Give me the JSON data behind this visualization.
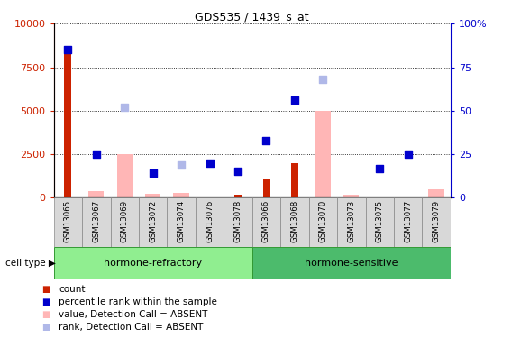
{
  "title": "GDS535 / 1439_s_at",
  "samples": [
    "GSM13065",
    "GSM13067",
    "GSM13069",
    "GSM13072",
    "GSM13074",
    "GSM13076",
    "GSM13078",
    "GSM13066",
    "GSM13068",
    "GSM13070",
    "GSM13073",
    "GSM13075",
    "GSM13077",
    "GSM13079"
  ],
  "ylim_left": [
    0,
    10000
  ],
  "ylim_right": [
    0,
    100
  ],
  "yticks_left": [
    0,
    2500,
    5000,
    7500,
    10000
  ],
  "yticks_right": [
    0,
    25,
    50,
    75,
    100
  ],
  "red_bars": [
    8500,
    0,
    0,
    0,
    0,
    0,
    150,
    1050,
    2000,
    0,
    0,
    0,
    0,
    0
  ],
  "pink_bars": [
    0,
    400,
    2500,
    250,
    300,
    0,
    0,
    0,
    0,
    5000,
    150,
    0,
    0,
    500
  ],
  "blue_squares_pct": [
    85,
    25,
    0,
    14,
    0,
    20,
    15,
    33,
    56,
    0,
    0,
    17,
    25,
    0
  ],
  "lavender_squares_pct": [
    0,
    0,
    52,
    0,
    19,
    0,
    0,
    0,
    0,
    68,
    0,
    0,
    0,
    0
  ],
  "dot_size": 40,
  "left_axis_color": "#cc2200",
  "right_axis_color": "#0000cc",
  "pink_color": "#ffb6b6",
  "lavender_color": "#b0b8e8",
  "red_color": "#cc2200",
  "blue_color": "#0000cc",
  "legend_items": [
    {
      "label": "count",
      "color": "#cc2200"
    },
    {
      "label": "percentile rank within the sample",
      "color": "#0000cc"
    },
    {
      "label": "value, Detection Call = ABSENT",
      "color": "#ffb6b6"
    },
    {
      "label": "rank, Detection Call = ABSENT",
      "color": "#b0b8e8"
    }
  ],
  "hr_color": "#90ee90",
  "hs_color": "#4cbb6c",
  "border_color": "#339933",
  "cell_type_label": "cell type",
  "cell_type_arrow": "▶"
}
